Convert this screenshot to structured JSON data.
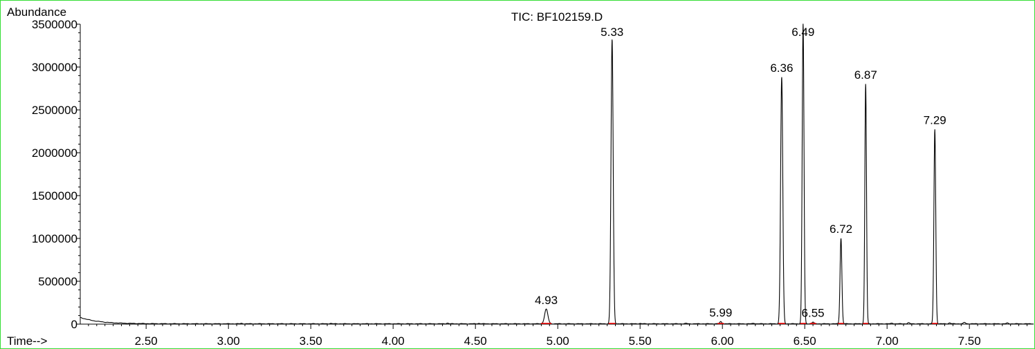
{
  "chart_data": {
    "type": "line",
    "title": "TIC: BF102159.D",
    "ylabel": "Abundance",
    "xlabel": "Time-->",
    "xlim": [
      2.1,
      7.89
    ],
    "ylim": [
      0,
      3500000
    ],
    "x_ticks": [
      2.5,
      3.0,
      3.5,
      4.0,
      4.5,
      5.0,
      5.5,
      6.0,
      6.5,
      7.0,
      7.5
    ],
    "x_tick_labels": [
      "2.50",
      "3.00",
      "3.50",
      "4.00",
      "4.50",
      "5.00",
      "5.50",
      "6.00",
      "6.50",
      "7.00",
      "7.50"
    ],
    "y_ticks": [
      0,
      500000,
      1000000,
      1500000,
      2000000,
      2500000,
      3000000,
      3500000
    ],
    "y_tick_labels": [
      "0",
      "500000",
      "1000000",
      "1500000",
      "2000000",
      "2500000",
      "3000000",
      "3500000"
    ],
    "peaks": [
      {
        "rt": 4.93,
        "label": "4.93",
        "height": 170000,
        "sigma": 0.01
      },
      {
        "rt": 5.33,
        "label": "5.33",
        "height": 3320000,
        "sigma": 0.0065
      },
      {
        "rt": 5.99,
        "label": "5.99",
        "height": 25000,
        "sigma": 0.006
      },
      {
        "rt": 6.36,
        "label": "6.36",
        "height": 2880000,
        "sigma": 0.0065
      },
      {
        "rt": 6.49,
        "label": "6.49",
        "height": 3500000,
        "sigma": 0.0055
      },
      {
        "rt": 6.55,
        "label": "6.55",
        "height": 20000,
        "sigma": 0.006
      },
      {
        "rt": 6.72,
        "label": "6.72",
        "height": 1000000,
        "sigma": 0.0055
      },
      {
        "rt": 6.87,
        "label": "6.87",
        "height": 2800000,
        "sigma": 0.005
      },
      {
        "rt": 7.29,
        "label": "7.29",
        "height": 2270000,
        "sigma": 0.0055
      }
    ],
    "line_color": "#000000",
    "baseline_marker_color": "#ff0000",
    "frame_color": "#33dd33"
  }
}
